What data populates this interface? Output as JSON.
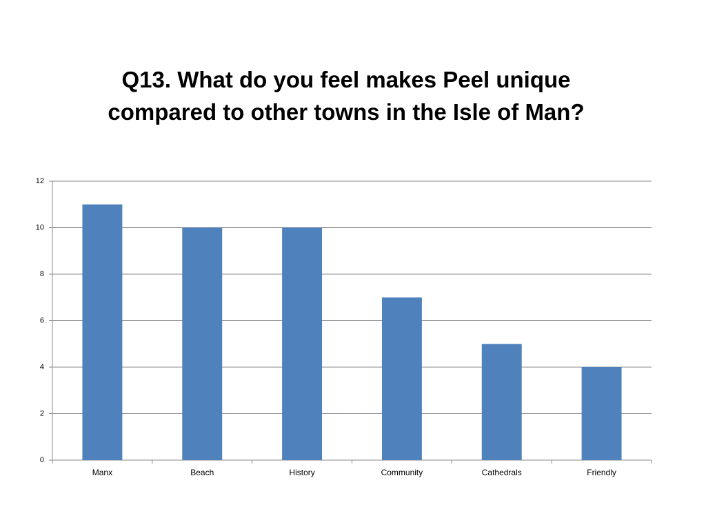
{
  "chart_data": {
    "type": "bar",
    "title": "Q13. What do you feel makes Peel unique compared to other towns in the Isle of Man?",
    "categories": [
      "Manx",
      "Beach",
      "History",
      "Community",
      "Cathedrals",
      "Friendly"
    ],
    "values": [
      11,
      10,
      10,
      7,
      5,
      4
    ],
    "color": "#4f81bd",
    "ylim": [
      0,
      12
    ],
    "yticks": [
      0,
      2,
      4,
      6,
      8,
      10,
      12
    ],
    "grid": true
  }
}
